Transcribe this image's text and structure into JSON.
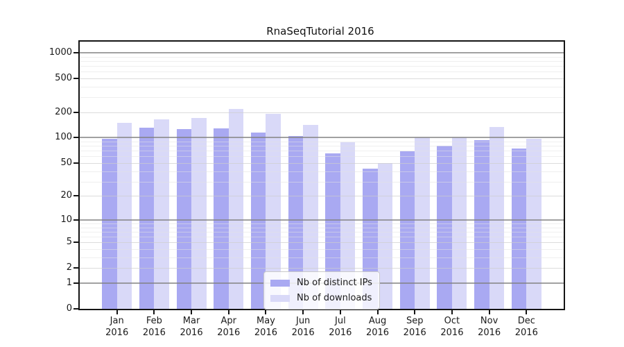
{
  "chart_data": {
    "type": "bar",
    "title": "RnaSeqTutorial 2016",
    "year_label": "2016",
    "categories": [
      "Jan",
      "Feb",
      "Mar",
      "Apr",
      "May",
      "Jun",
      "Jul",
      "Aug",
      "Sep",
      "Oct",
      "Nov",
      "Dec"
    ],
    "series": [
      {
        "name": "Nb of distinct IPs",
        "color": "#a9a9f2",
        "values": [
          97,
          131,
          127,
          130,
          116,
          104,
          65,
          43,
          69,
          80,
          93,
          75
        ]
      },
      {
        "name": "Nb of downloads",
        "color": "#d9d9f8",
        "values": [
          150,
          166,
          170,
          218,
          193,
          142,
          88,
          50,
          100,
          101,
          135,
          97
        ]
      }
    ],
    "yticks": [
      0,
      1,
      2,
      5,
      10,
      20,
      50,
      100,
      200,
      500,
      1000
    ],
    "y_scale": "log10(1+v)",
    "ylim": [
      0,
      1325
    ],
    "xlabel": "",
    "ylabel": "",
    "grid": true,
    "legend_position": "lower-center"
  }
}
